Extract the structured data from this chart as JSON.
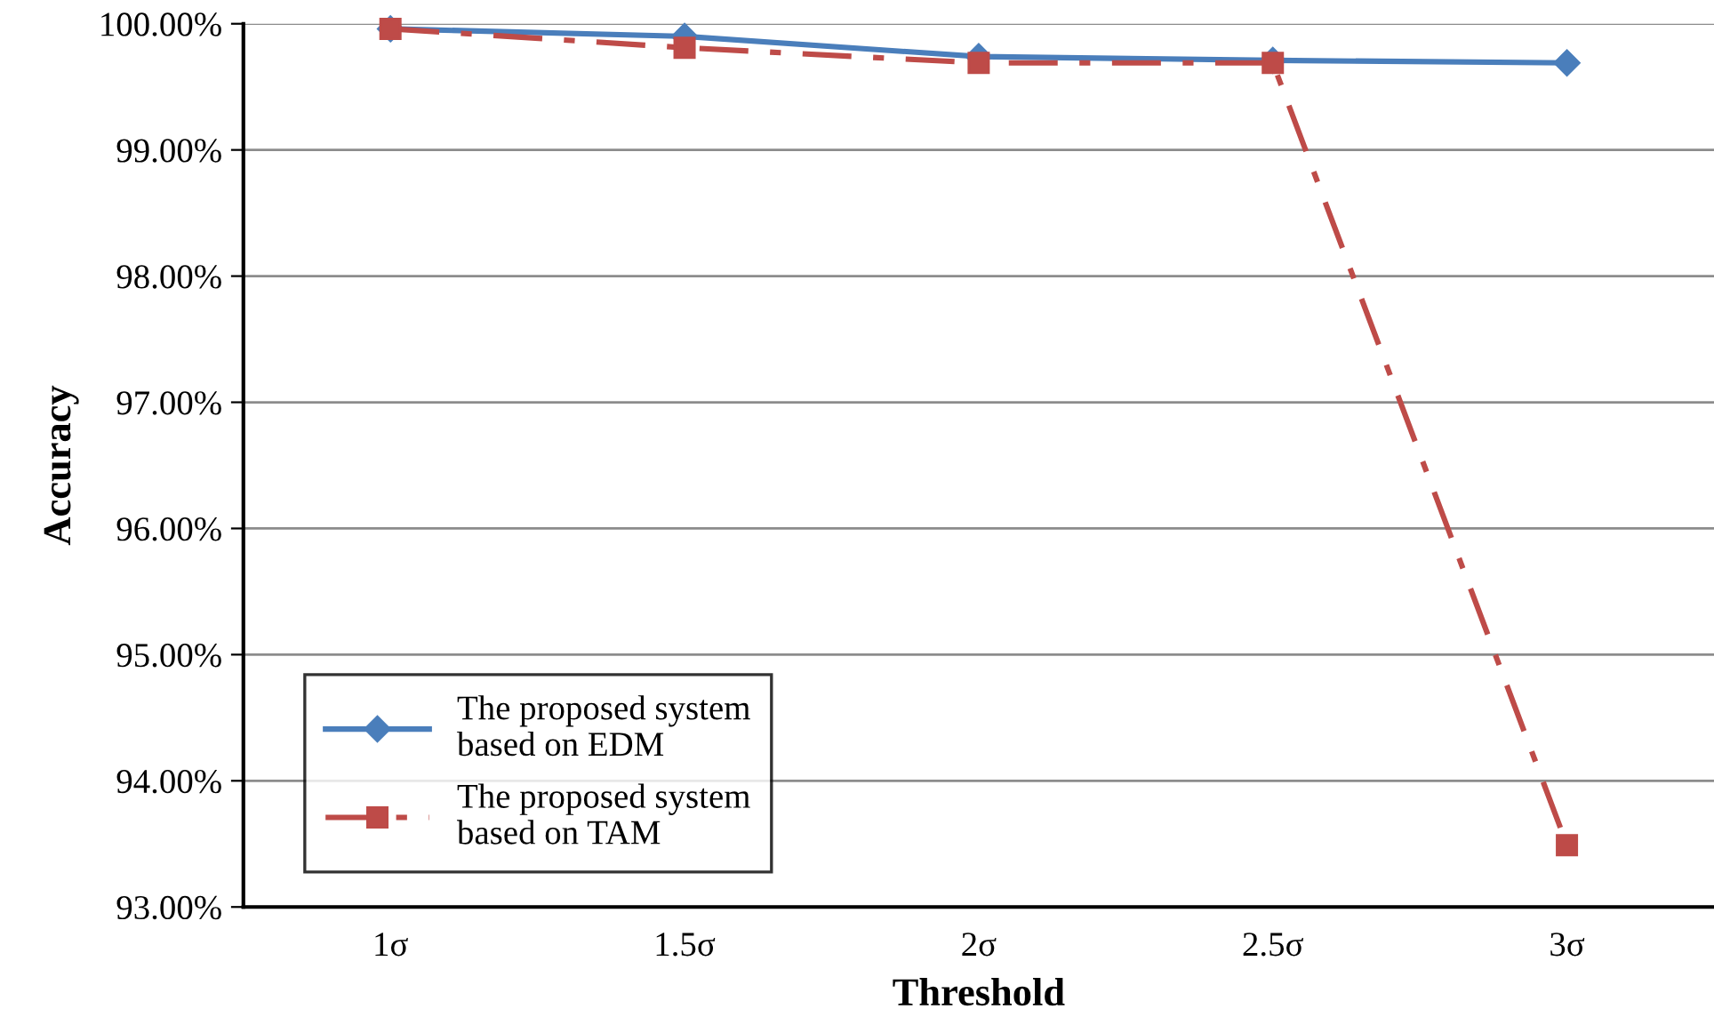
{
  "chart_data": {
    "type": "line",
    "xlabel": "Threshold",
    "ylabel": "Accuracy",
    "categories": [
      "1σ",
      "1.5σ",
      "2σ",
      "2.5σ",
      "3σ"
    ],
    "series": [
      {
        "name": "The proposed system\nbased on EDM",
        "color": "#4a7ebb",
        "marker": "diamond",
        "line_style": "solid",
        "values": [
          99.96,
          99.9,
          99.74,
          99.71,
          99.69
        ]
      },
      {
        "name": "The proposed system\nbased on TAM",
        "color": "#be4b48",
        "marker": "square",
        "line_style": "dashdot",
        "values": [
          99.96,
          99.81,
          99.69,
          99.69,
          93.49
        ]
      }
    ],
    "ylim": [
      93,
      100
    ],
    "yticks": [
      {
        "value": 93,
        "label": "93.00%"
      },
      {
        "value": 94,
        "label": "94.00%"
      },
      {
        "value": 95,
        "label": "95.00%"
      },
      {
        "value": 96,
        "label": "96.00%"
      },
      {
        "value": 97,
        "label": "97.00%"
      },
      {
        "value": 98,
        "label": "98.00%"
      },
      {
        "value": 99,
        "label": "99.00%"
      },
      {
        "value": 100,
        "label": "100.00%"
      }
    ],
    "grid": "y",
    "legend": "bottom left"
  }
}
